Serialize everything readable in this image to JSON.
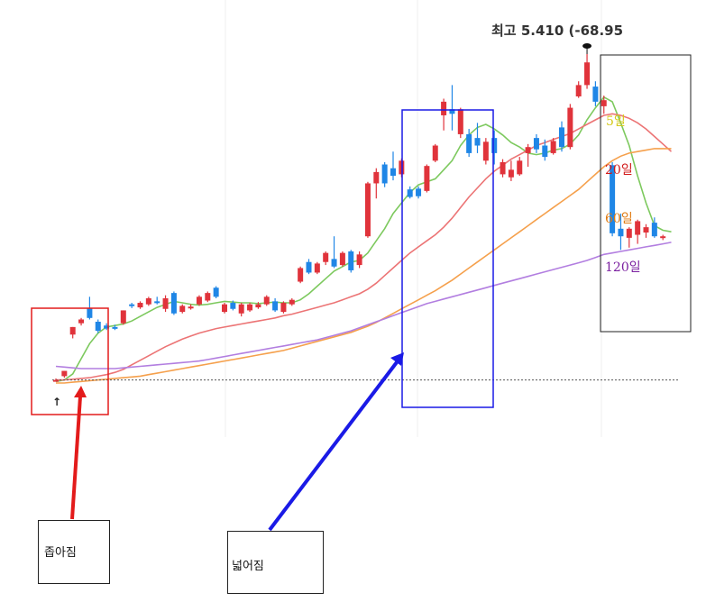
{
  "chart_data": {
    "type": "candlestick",
    "title": "",
    "high_label": "최고 5.410 (-68.95",
    "candles": [
      {
        "o": 1.1,
        "h": 1.12,
        "l": 1.08,
        "c": 1.1,
        "color": "red"
      },
      {
        "o": 1.15,
        "h": 1.22,
        "l": 1.13,
        "c": 1.22,
        "color": "red"
      },
      {
        "o": 1.7,
        "h": 1.8,
        "l": 1.65,
        "c": 1.8,
        "color": "red"
      },
      {
        "o": 1.85,
        "h": 1.92,
        "l": 1.82,
        "c": 1.9,
        "color": "red"
      },
      {
        "o": 2.05,
        "h": 2.2,
        "l": 1.9,
        "c": 1.92,
        "color": "blue"
      },
      {
        "o": 1.87,
        "h": 1.9,
        "l": 1.72,
        "c": 1.75,
        "color": "blue"
      },
      {
        "o": 1.82,
        "h": 1.85,
        "l": 1.76,
        "c": 1.78,
        "color": "blue"
      },
      {
        "o": 1.8,
        "h": 1.83,
        "l": 1.76,
        "c": 1.8,
        "color": "blue"
      },
      {
        "o": 1.85,
        "h": 2.02,
        "l": 1.83,
        "c": 2.02,
        "color": "red"
      },
      {
        "o": 2.08,
        "h": 2.12,
        "l": 2.05,
        "c": 2.1,
        "color": "blue"
      },
      {
        "o": 2.06,
        "h": 2.14,
        "l": 2.04,
        "c": 2.12,
        "color": "red"
      },
      {
        "o": 2.1,
        "h": 2.2,
        "l": 2.08,
        "c": 2.18,
        "color": "red"
      },
      {
        "o": 2.14,
        "h": 2.2,
        "l": 2.1,
        "c": 2.12,
        "color": "blue"
      },
      {
        "o": 2.18,
        "h": 2.22,
        "l": 2.0,
        "c": 2.04,
        "color": "red"
      },
      {
        "o": 2.25,
        "h": 2.27,
        "l": 1.96,
        "c": 1.98,
        "color": "blue"
      },
      {
        "o": 2.0,
        "h": 2.1,
        "l": 1.98,
        "c": 2.08,
        "color": "red"
      },
      {
        "o": 2.05,
        "h": 2.1,
        "l": 2.03,
        "c": 2.07,
        "color": "red"
      },
      {
        "o": 2.1,
        "h": 2.22,
        "l": 2.08,
        "c": 2.2,
        "color": "red"
      },
      {
        "o": 2.15,
        "h": 2.27,
        "l": 2.13,
        "c": 2.25,
        "color": "red"
      },
      {
        "o": 2.32,
        "h": 2.34,
        "l": 2.18,
        "c": 2.2,
        "color": "blue"
      },
      {
        "o": 2.0,
        "h": 2.12,
        "l": 1.98,
        "c": 2.1,
        "color": "red"
      },
      {
        "o": 2.12,
        "h": 2.15,
        "l": 2.02,
        "c": 2.04,
        "color": "blue"
      },
      {
        "o": 1.98,
        "h": 2.12,
        "l": 1.94,
        "c": 2.1,
        "color": "red"
      },
      {
        "o": 2.02,
        "h": 2.12,
        "l": 2.0,
        "c": 2.1,
        "color": "red"
      },
      {
        "o": 2.06,
        "h": 2.13,
        "l": 2.04,
        "c": 2.1,
        "color": "red"
      },
      {
        "o": 2.1,
        "h": 2.22,
        "l": 2.08,
        "c": 2.2,
        "color": "red"
      },
      {
        "o": 2.14,
        "h": 2.18,
        "l": 2.0,
        "c": 2.02,
        "color": "blue"
      },
      {
        "o": 2.0,
        "h": 2.14,
        "l": 1.98,
        "c": 2.12,
        "color": "red"
      },
      {
        "o": 2.1,
        "h": 2.18,
        "l": 2.08,
        "c": 2.16,
        "color": "red"
      },
      {
        "o": 2.4,
        "h": 2.6,
        "l": 2.38,
        "c": 2.58,
        "color": "red"
      },
      {
        "o": 2.66,
        "h": 2.7,
        "l": 2.5,
        "c": 2.52,
        "color": "blue"
      },
      {
        "o": 2.52,
        "h": 2.66,
        "l": 2.5,
        "c": 2.64,
        "color": "red"
      },
      {
        "o": 2.66,
        "h": 2.8,
        "l": 2.62,
        "c": 2.78,
        "color": "red"
      },
      {
        "o": 2.7,
        "h": 3.0,
        "l": 2.58,
        "c": 2.6,
        "color": "blue"
      },
      {
        "o": 2.62,
        "h": 2.8,
        "l": 2.6,
        "c": 2.78,
        "color": "red"
      },
      {
        "o": 2.8,
        "h": 2.82,
        "l": 2.52,
        "c": 2.55,
        "color": "blue"
      },
      {
        "o": 2.62,
        "h": 2.8,
        "l": 2.58,
        "c": 2.76,
        "color": "red"
      },
      {
        "o": 3.0,
        "h": 3.72,
        "l": 2.98,
        "c": 3.7,
        "color": "red"
      },
      {
        "o": 3.7,
        "h": 3.9,
        "l": 3.5,
        "c": 3.85,
        "color": "red"
      },
      {
        "o": 3.95,
        "h": 3.98,
        "l": 3.65,
        "c": 3.7,
        "color": "blue"
      },
      {
        "o": 3.9,
        "h": 4.12,
        "l": 3.74,
        "c": 3.8,
        "color": "blue"
      },
      {
        "o": 3.82,
        "h": 4.03,
        "l": 3.78,
        "c": 4.0,
        "color": "red"
      },
      {
        "o": 3.62,
        "h": 3.66,
        "l": 3.5,
        "c": 3.52,
        "color": "blue"
      },
      {
        "o": 3.53,
        "h": 3.66,
        "l": 3.5,
        "c": 3.63,
        "color": "blue"
      },
      {
        "o": 3.6,
        "h": 3.95,
        "l": 3.58,
        "c": 3.93,
        "color": "red"
      },
      {
        "o": 4.0,
        "h": 4.22,
        "l": 3.98,
        "c": 4.2,
        "color": "red"
      },
      {
        "o": 4.6,
        "h": 4.82,
        "l": 4.4,
        "c": 4.78,
        "color": "red"
      },
      {
        "o": 4.68,
        "h": 5.0,
        "l": 4.4,
        "c": 4.62,
        "color": "blue"
      },
      {
        "o": 4.35,
        "h": 4.7,
        "l": 4.3,
        "c": 4.68,
        "color": "red"
      },
      {
        "o": 4.35,
        "h": 4.42,
        "l": 4.05,
        "c": 4.1,
        "color": "blue"
      },
      {
        "o": 4.3,
        "h": 4.5,
        "l": 4.1,
        "c": 4.2,
        "color": "blue"
      },
      {
        "o": 4.0,
        "h": 4.3,
        "l": 3.95,
        "c": 4.25,
        "color": "red"
      },
      {
        "o": 4.3,
        "h": 4.4,
        "l": 3.95,
        "c": 4.1,
        "color": "blue"
      },
      {
        "o": 3.82,
        "h": 4.02,
        "l": 3.78,
        "c": 3.98,
        "color": "red"
      },
      {
        "o": 3.88,
        "h": 4.0,
        "l": 3.73,
        "c": 3.78,
        "color": "red"
      },
      {
        "o": 3.82,
        "h": 4.05,
        "l": 3.8,
        "c": 4.0,
        "color": "red"
      },
      {
        "o": 4.1,
        "h": 4.22,
        "l": 3.92,
        "c": 4.18,
        "color": "red"
      },
      {
        "o": 4.15,
        "h": 4.35,
        "l": 4.1,
        "c": 4.3,
        "color": "blue"
      },
      {
        "o": 4.2,
        "h": 4.28,
        "l": 4.0,
        "c": 4.05,
        "color": "blue"
      },
      {
        "o": 4.1,
        "h": 4.3,
        "l": 4.08,
        "c": 4.26,
        "color": "red"
      },
      {
        "o": 4.44,
        "h": 4.52,
        "l": 4.12,
        "c": 4.18,
        "color": "blue"
      },
      {
        "o": 4.18,
        "h": 4.75,
        "l": 4.15,
        "c": 4.7,
        "color": "red"
      },
      {
        "o": 4.85,
        "h": 5.05,
        "l": 4.83,
        "c": 5.0,
        "color": "red"
      },
      {
        "o": 5.0,
        "h": 5.41,
        "l": 4.95,
        "c": 5.3,
        "color": "red"
      },
      {
        "o": 4.98,
        "h": 5.05,
        "l": 4.72,
        "c": 4.78,
        "color": "blue"
      },
      {
        "o": 4.72,
        "h": 4.86,
        "l": 4.62,
        "c": 4.8,
        "color": "red"
      },
      {
        "o": 3.94,
        "h": 3.98,
        "l": 3.0,
        "c": 3.04,
        "color": "blue"
      },
      {
        "o": 3.1,
        "h": 3.3,
        "l": 2.82,
        "c": 3.0,
        "color": "blue"
      },
      {
        "o": 2.98,
        "h": 3.12,
        "l": 2.85,
        "c": 3.1,
        "color": "red"
      },
      {
        "o": 3.02,
        "h": 3.22,
        "l": 2.9,
        "c": 3.2,
        "color": "red"
      },
      {
        "o": 3.05,
        "h": 3.16,
        "l": 2.98,
        "c": 3.12,
        "color": "red"
      },
      {
        "o": 3.18,
        "h": 3.25,
        "l": 2.98,
        "c": 3.0,
        "color": "blue"
      },
      {
        "o": 2.98,
        "h": 3.02,
        "l": 2.95,
        "c": 3.0,
        "color": "red"
      }
    ],
    "moving_averages": [
      {
        "name": "5일",
        "color": "#7dc95e",
        "label_color": "#d4c91a",
        "values": [
          1.08,
          1.1,
          1.18,
          1.38,
          1.58,
          1.72,
          1.8,
          1.82,
          1.84,
          1.88,
          1.94,
          2.0,
          2.06,
          2.1,
          2.14,
          2.12,
          2.1,
          2.09,
          2.1,
          2.12,
          2.14,
          2.13,
          2.12,
          2.12,
          2.11,
          2.12,
          2.13,
          2.12,
          2.12,
          2.16,
          2.24,
          2.34,
          2.44,
          2.54,
          2.6,
          2.66,
          2.68,
          2.78,
          2.94,
          3.1,
          3.3,
          3.44,
          3.58,
          3.68,
          3.72,
          3.76,
          3.88,
          4.0,
          4.2,
          4.34,
          4.44,
          4.48,
          4.42,
          4.34,
          4.24,
          4.18,
          4.1,
          4.08,
          4.1,
          4.14,
          4.16,
          4.22,
          4.34,
          4.54,
          4.7,
          4.84,
          4.78,
          4.5,
          4.2,
          3.8,
          3.44,
          3.14,
          3.08,
          3.06
        ]
      },
      {
        "name": "20일",
        "color": "#ec7475",
        "label_color": "#d11818",
        "values": [
          1.1,
          1.1,
          1.11,
          1.12,
          1.13,
          1.15,
          1.17,
          1.2,
          1.24,
          1.3,
          1.36,
          1.42,
          1.48,
          1.54,
          1.59,
          1.64,
          1.68,
          1.72,
          1.75,
          1.78,
          1.8,
          1.82,
          1.84,
          1.86,
          1.88,
          1.9,
          1.92,
          1.95,
          1.97,
          2.0,
          2.03,
          2.06,
          2.09,
          2.12,
          2.16,
          2.2,
          2.24,
          2.3,
          2.38,
          2.48,
          2.58,
          2.68,
          2.78,
          2.86,
          2.94,
          3.02,
          3.12,
          3.24,
          3.38,
          3.52,
          3.64,
          3.76,
          3.86,
          3.94,
          4.02,
          4.08,
          4.14,
          4.2,
          4.24,
          4.28,
          4.32,
          4.36,
          4.42,
          4.48,
          4.54,
          4.6,
          4.62,
          4.6,
          4.56,
          4.5,
          4.42,
          4.32,
          4.22,
          4.12
        ]
      },
      {
        "name": "60일",
        "color": "#f5a04c",
        "label_color": "#e07a10",
        "values": [
          1.06,
          1.06,
          1.07,
          1.08,
          1.09,
          1.1,
          1.11,
          1.12,
          1.13,
          1.14,
          1.15,
          1.17,
          1.19,
          1.21,
          1.23,
          1.25,
          1.27,
          1.29,
          1.31,
          1.33,
          1.35,
          1.37,
          1.39,
          1.41,
          1.43,
          1.45,
          1.47,
          1.49,
          1.52,
          1.55,
          1.58,
          1.61,
          1.64,
          1.67,
          1.7,
          1.73,
          1.77,
          1.81,
          1.86,
          1.92,
          1.98,
          2.04,
          2.1,
          2.16,
          2.22,
          2.28,
          2.35,
          2.42,
          2.5,
          2.58,
          2.66,
          2.74,
          2.82,
          2.9,
          2.98,
          3.06,
          3.14,
          3.22,
          3.3,
          3.38,
          3.46,
          3.54,
          3.62,
          3.72,
          3.82,
          3.92,
          4.0,
          4.06,
          4.1,
          4.12,
          4.14,
          4.16,
          4.16,
          4.16
        ]
      },
      {
        "name": "120일",
        "color": "#b27ee0",
        "label_color": "#7a1fa0",
        "values": [
          1.28,
          1.27,
          1.26,
          1.25,
          1.25,
          1.25,
          1.25,
          1.25,
          1.26,
          1.27,
          1.28,
          1.29,
          1.3,
          1.31,
          1.32,
          1.33,
          1.34,
          1.35,
          1.37,
          1.39,
          1.41,
          1.43,
          1.45,
          1.47,
          1.49,
          1.51,
          1.53,
          1.55,
          1.57,
          1.59,
          1.61,
          1.63,
          1.66,
          1.69,
          1.72,
          1.75,
          1.79,
          1.83,
          1.87,
          1.91,
          1.95,
          1.99,
          2.03,
          2.07,
          2.11,
          2.14,
          2.17,
          2.2,
          2.23,
          2.26,
          2.29,
          2.32,
          2.35,
          2.38,
          2.41,
          2.44,
          2.47,
          2.5,
          2.53,
          2.56,
          2.59,
          2.62,
          2.65,
          2.68,
          2.72,
          2.76,
          2.78,
          2.8,
          2.82,
          2.84,
          2.86,
          2.88,
          2.9,
          2.92
        ]
      }
    ],
    "baseline_value": 1.1,
    "y_range": [
      1.0,
      5.41
    ],
    "grid": "vertical",
    "annotations": [
      {
        "label": "좁아짐",
        "color": "#e31b1b"
      },
      {
        "label": "넓어짐",
        "color": "#1a1ae6"
      }
    ]
  }
}
